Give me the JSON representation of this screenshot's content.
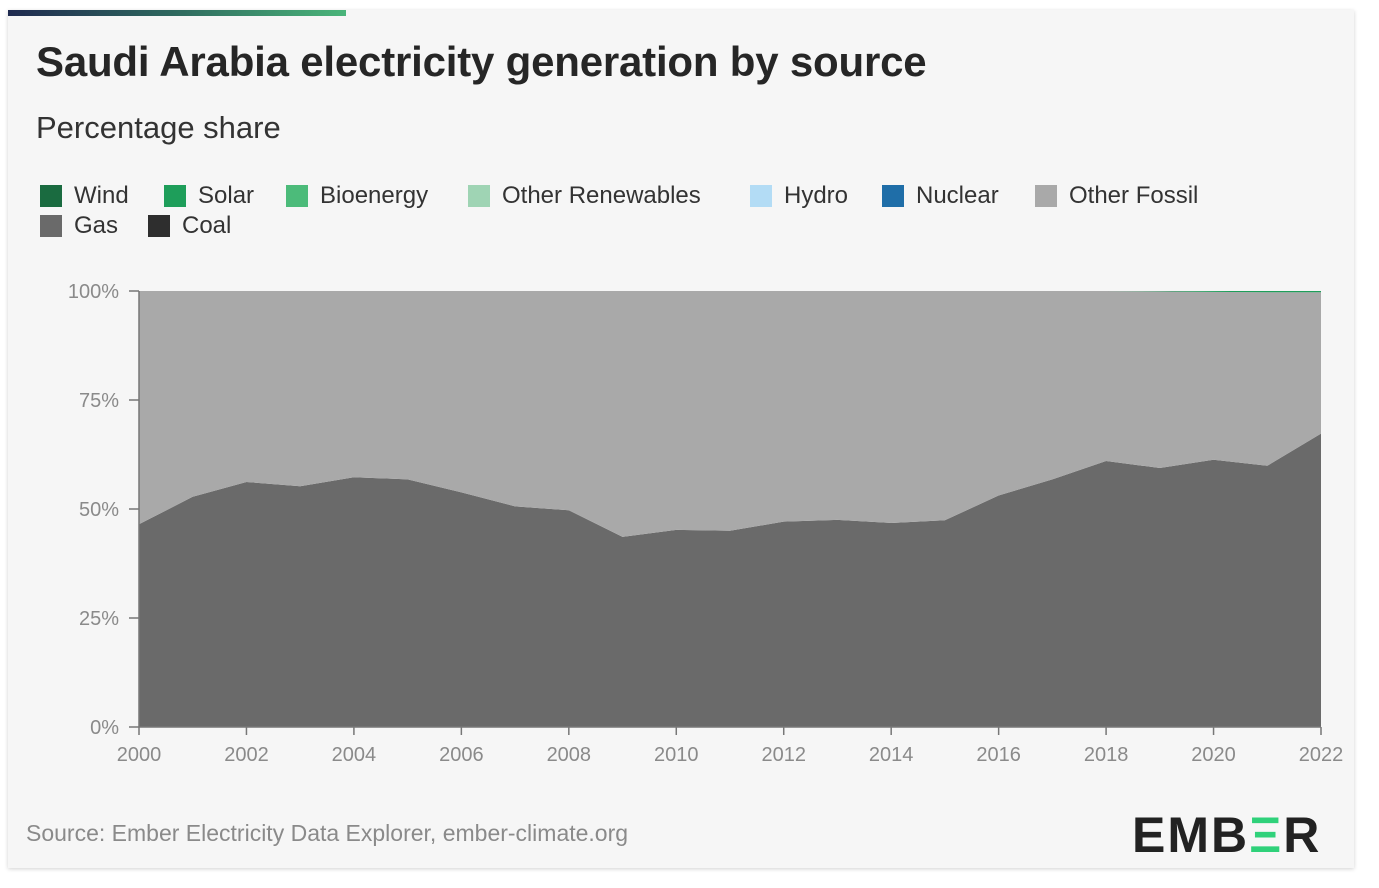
{
  "header": {
    "title": "Saudi Arabia electricity generation by source",
    "subtitle": "Percentage share"
  },
  "legend": [
    {
      "label": "Wind",
      "color": "#1a6b40"
    },
    {
      "label": "Solar",
      "color": "#1e9e5a"
    },
    {
      "label": "Bioenergy",
      "color": "#4cbb7a"
    },
    {
      "label": "Other Renewables",
      "color": "#9fd4b4"
    },
    {
      "label": "Hydro",
      "color": "#b3dcf5"
    },
    {
      "label": "Nuclear",
      "color": "#1f6ea8"
    },
    {
      "label": "Other Fossil",
      "color": "#a9a9a9"
    },
    {
      "label": "Gas",
      "color": "#6a6a6a"
    },
    {
      "label": "Coal",
      "color": "#2e2e2e"
    }
  ],
  "chart_data": {
    "type": "area",
    "stacked": true,
    "x": [
      2000,
      2001,
      2002,
      2003,
      2004,
      2005,
      2006,
      2007,
      2008,
      2009,
      2010,
      2011,
      2012,
      2013,
      2014,
      2015,
      2016,
      2017,
      2018,
      2019,
      2020,
      2021,
      2022
    ],
    "series": [
      {
        "name": "Gas",
        "color": "#6a6a6a",
        "values": [
          46.5,
          52.8,
          56.2,
          55.2,
          57.3,
          56.8,
          53.8,
          50.6,
          49.7,
          43.6,
          45.2,
          45.0,
          47.1,
          47.5,
          46.8,
          47.4,
          53.1,
          56.8,
          61.0,
          59.4,
          61.3,
          59.9,
          67.3
        ]
      },
      {
        "name": "Other Fossil",
        "color": "#a9a9a9",
        "values": [
          53.5,
          47.2,
          43.8,
          44.8,
          42.7,
          43.2,
          46.2,
          49.4,
          50.3,
          56.4,
          54.8,
          55.0,
          52.9,
          52.5,
          53.2,
          52.6,
          46.9,
          43.2,
          39.0,
          40.5,
          38.5,
          39.8,
          32.4
        ]
      },
      {
        "name": "Solar",
        "color": "#1e9e5a",
        "values": [
          0,
          0,
          0,
          0,
          0,
          0,
          0,
          0,
          0,
          0,
          0,
          0,
          0,
          0,
          0,
          0,
          0,
          0,
          0,
          0.1,
          0.2,
          0.3,
          0.3
        ]
      }
    ],
    "xticks": [
      "2000",
      "2002",
      "2004",
      "2006",
      "2008",
      "2010",
      "2012",
      "2014",
      "2016",
      "2018",
      "2020",
      "2022"
    ],
    "yticks": [
      "0%",
      "25%",
      "50%",
      "75%",
      "100%"
    ],
    "ylim": [
      0,
      100
    ],
    "xlim": [
      2000,
      2022
    ],
    "grid": false
  },
  "footer": {
    "source": "Source: Ember Electricity Data Explorer, ember-climate.org",
    "logo_left": "EMB",
    "logo_mark": "Ξ",
    "logo_right": "R"
  }
}
